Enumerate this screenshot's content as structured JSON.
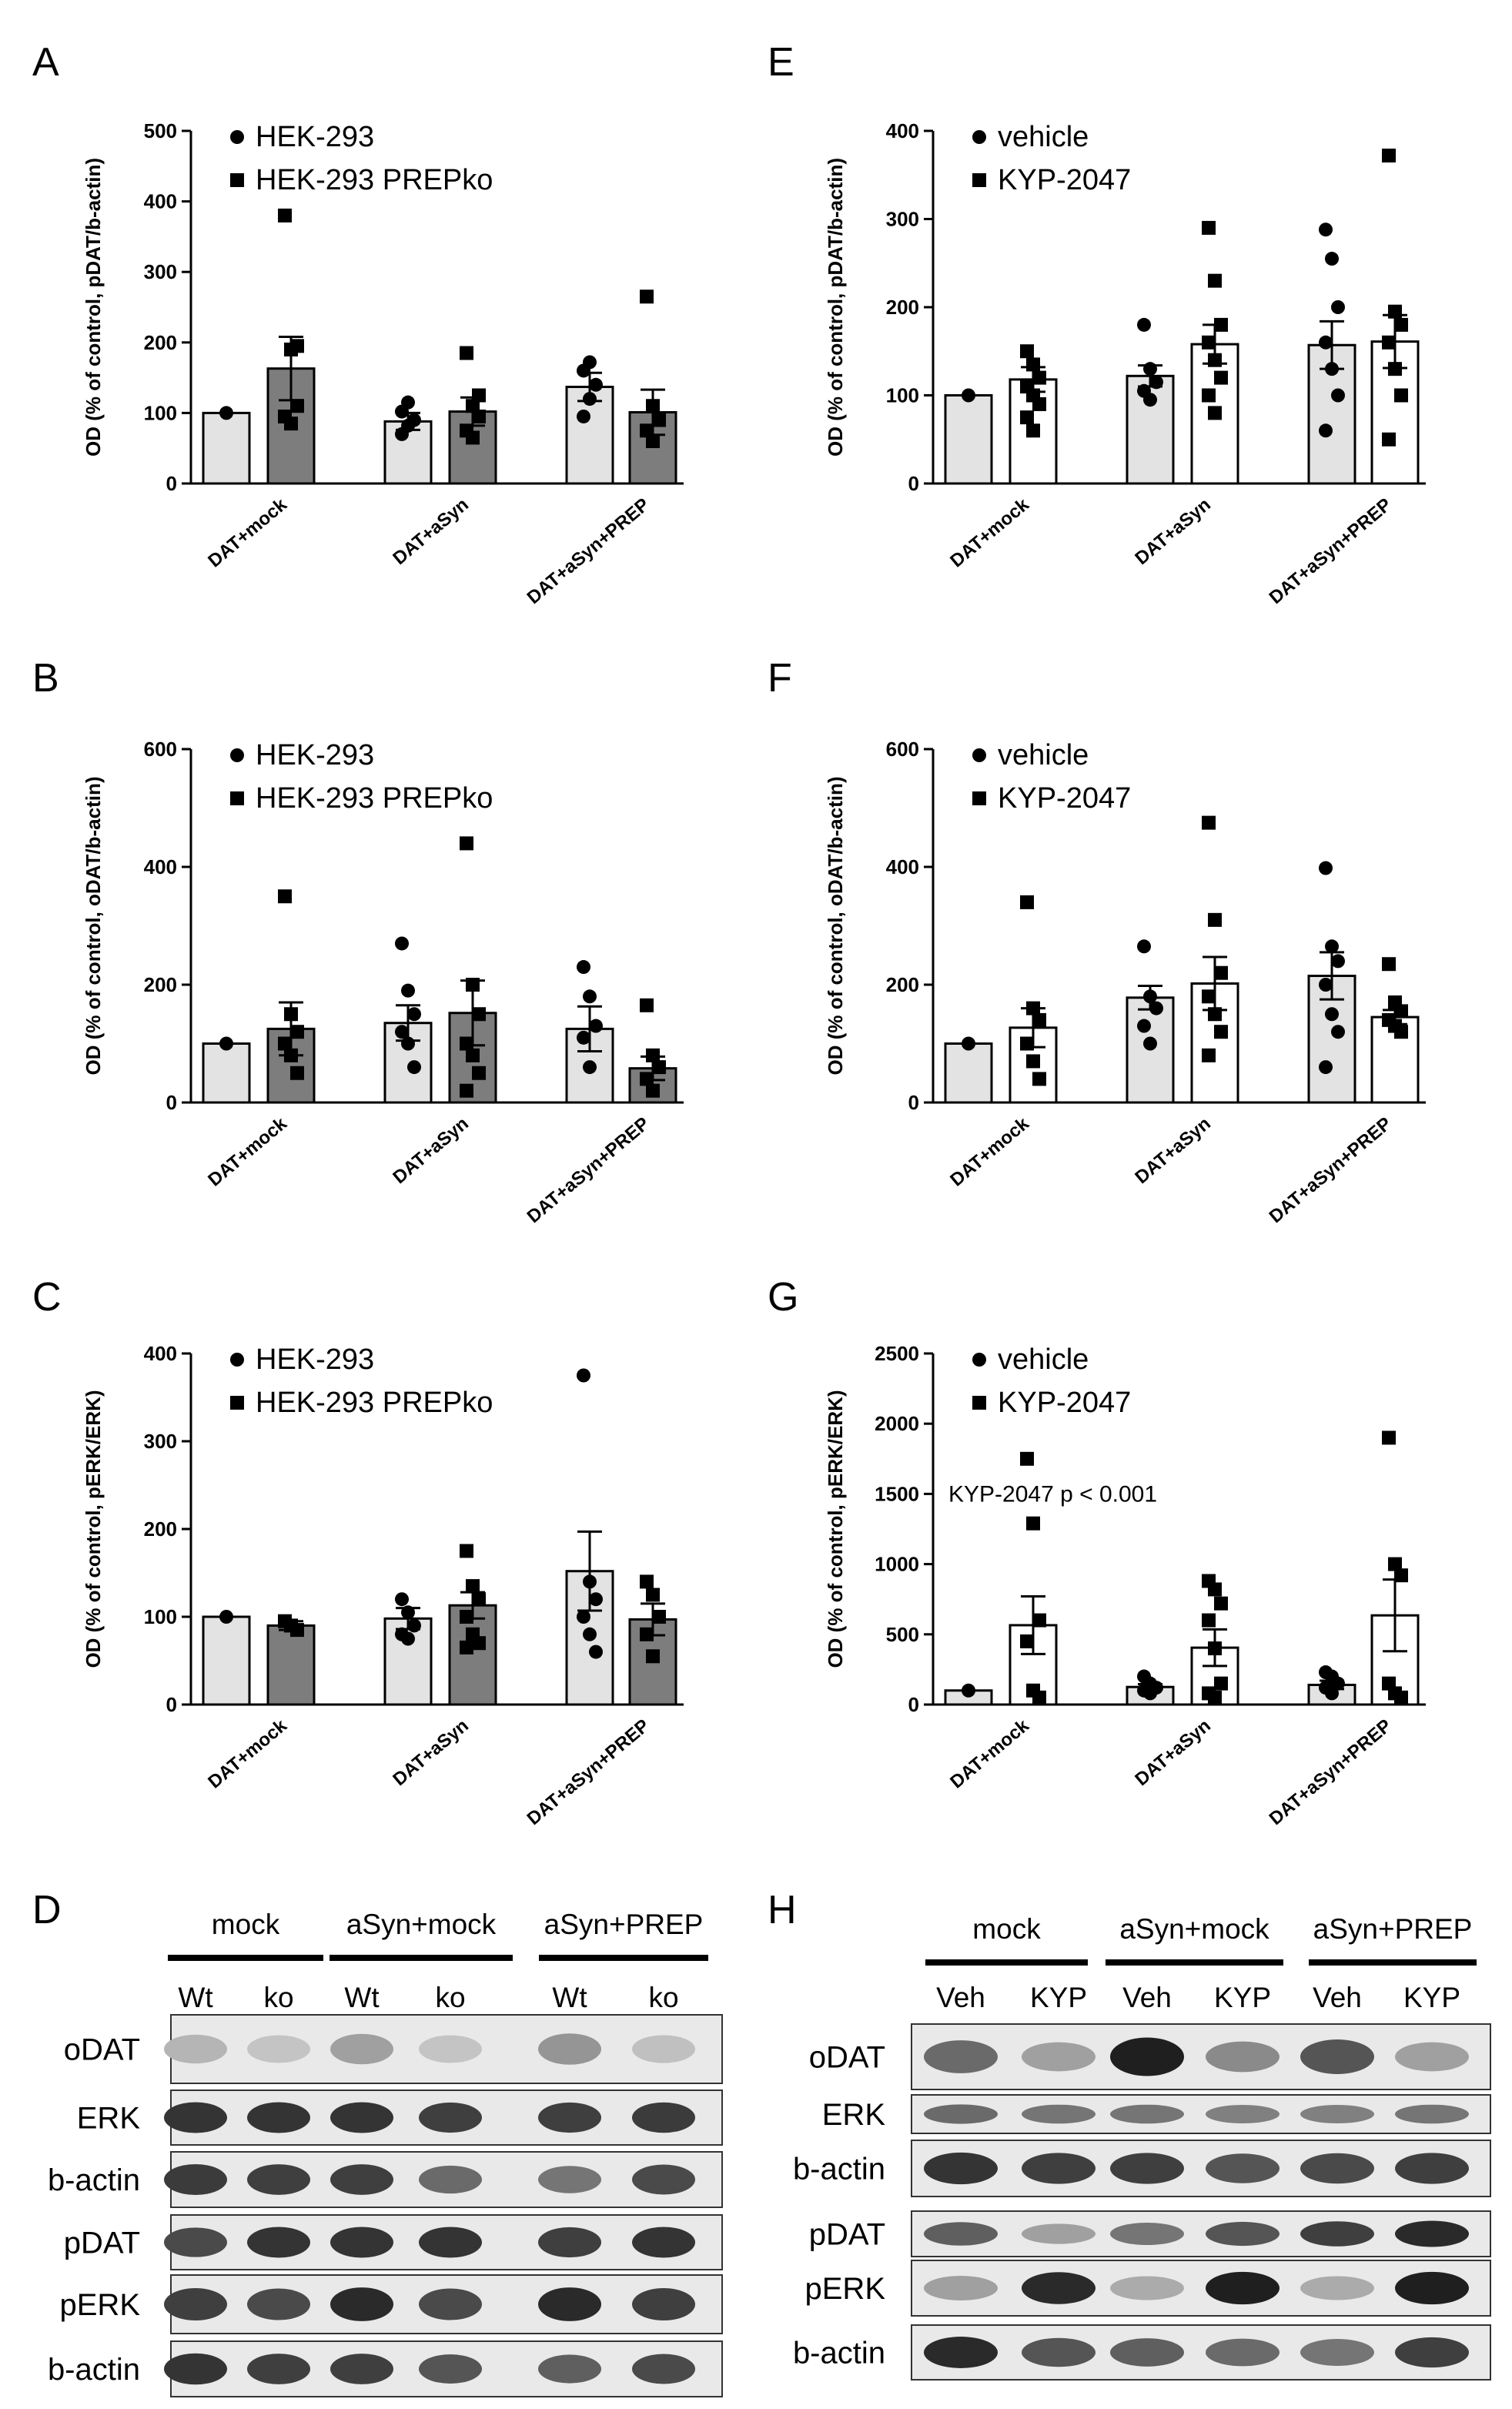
{
  "colors": {
    "gray_light": "#e3e3e3",
    "gray_dark": "#7d7d7d",
    "white": "#ffffff",
    "black": "#000000"
  },
  "chart_data": [
    {
      "panel": "A",
      "type": "bar",
      "title": "",
      "ylabel": "OD (% of control, pDAT/b-actin)",
      "yticks": [
        0,
        100,
        200,
        300,
        400,
        500
      ],
      "ylim": [
        0,
        500
      ],
      "categories": [
        "DAT+mock",
        "DAT+aSyn",
        "DAT+aSyn+PREP"
      ],
      "legend": [
        "HEK-293",
        "HEK-293 PREPko"
      ],
      "series": [
        {
          "name": "HEK-293",
          "fill": "light",
          "marker": "circle",
          "values": [
            100,
            88,
            137
          ],
          "sem": [
            0,
            12,
            20
          ],
          "points": [
            [
              100
            ],
            [
              70,
              82,
              90,
              102,
              115
            ],
            [
              95,
              120,
              140,
              160,
              172
            ]
          ]
        },
        {
          "name": "HEK-293 PREPko",
          "fill": "dark",
          "marker": "square",
          "values": [
            163,
            102,
            101
          ],
          "sem": [
            45,
            20,
            32
          ],
          "points": [
            [
              380,
              190,
              110,
              95,
              85,
              195
            ],
            [
              185,
              110,
              95,
              75,
              65,
              125
            ],
            [
              265,
              110,
              90,
              75,
              60
            ]
          ]
        }
      ],
      "annotation": ""
    },
    {
      "panel": "B",
      "type": "bar",
      "title": "",
      "ylabel": "OD (% of control, oDAT/b-actin)",
      "yticks": [
        0,
        200,
        400,
        600
      ],
      "ylim": [
        0,
        600
      ],
      "categories": [
        "DAT+mock",
        "DAT+aSyn",
        "DAT+aSyn+PREP"
      ],
      "legend": [
        "HEK-293",
        "HEK-293 PREPko"
      ],
      "series": [
        {
          "name": "HEK-293",
          "fill": "light",
          "marker": "circle",
          "values": [
            100,
            135,
            125
          ],
          "sem": [
            0,
            30,
            38
          ],
          "points": [
            [
              100
            ],
            [
              270,
              190,
              150,
              120,
              100,
              60
            ],
            [
              230,
              180,
              130,
              110,
              60
            ]
          ]
        },
        {
          "name": "HEK-293 PREPko",
          "fill": "dark",
          "marker": "square",
          "values": [
            125,
            152,
            58
          ],
          "sem": [
            45,
            55,
            20
          ],
          "points": [
            [
              350,
              150,
              120,
              100,
              80,
              50
            ],
            [
              440,
              200,
              150,
              100,
              80,
              50,
              20
            ],
            [
              165,
              80,
              60,
              40,
              20
            ]
          ]
        }
      ],
      "annotation": ""
    },
    {
      "panel": "C",
      "type": "bar",
      "title": "",
      "ylabel": "OD (% of control, pERK/ERK)",
      "yticks": [
        0,
        100,
        200,
        300,
        400
      ],
      "ylim": [
        0,
        400
      ],
      "categories": [
        "DAT+mock",
        "DAT+aSyn",
        "DAT+aSyn+PREP"
      ],
      "legend": [
        "HEK-293",
        "HEK-293 PREPko"
      ],
      "series": [
        {
          "name": "HEK-293",
          "fill": "light",
          "marker": "circle",
          "values": [
            100,
            98,
            152
          ],
          "sem": [
            0,
            12,
            45
          ],
          "points": [
            [
              100
            ],
            [
              120,
              105,
              90,
              80,
              75
            ],
            [
              375,
              140,
              120,
              100,
              80,
              60
            ]
          ]
        },
        {
          "name": "HEK-293 PREPko",
          "fill": "dark",
          "marker": "square",
          "values": [
            90,
            113,
            97
          ],
          "sem": [
            5,
            15,
            18
          ],
          "points": [
            [
              95,
              90,
              85
            ],
            [
              175,
              135,
              120,
              100,
              80,
              70,
              65
            ],
            [
              140,
              125,
              100,
              80,
              55
            ]
          ]
        }
      ],
      "annotation": ""
    },
    {
      "panel": "E",
      "type": "bar",
      "title": "",
      "ylabel": "OD (% of control, pDAT/b-actin)",
      "yticks": [
        0,
        100,
        200,
        300,
        400
      ],
      "ylim": [
        0,
        400
      ],
      "categories": [
        "DAT+mock",
        "DAT+aSyn",
        "DAT+aSyn+PREP"
      ],
      "legend": [
        "vehicle",
        "KYP-2047"
      ],
      "series": [
        {
          "name": "vehicle",
          "fill": "light",
          "marker": "circle",
          "values": [
            100,
            122,
            157
          ],
          "sem": [
            0,
            12,
            27
          ],
          "points": [
            [
              100
            ],
            [
              180,
              130,
              115,
              105,
              95
            ],
            [
              288,
              255,
              200,
              160,
              130,
              100,
              60
            ]
          ]
        },
        {
          "name": "KYP-2047",
          "fill": "white",
          "marker": "square",
          "values": [
            118,
            158,
            161
          ],
          "sem": [
            14,
            22,
            30
          ],
          "points": [
            [
              150,
              135,
              120,
              110,
              100,
              90,
              75,
              60
            ],
            [
              290,
              230,
              180,
              160,
              140,
              120,
              100,
              80
            ],
            [
              372,
              195,
              180,
              160,
              130,
              100,
              50
            ]
          ]
        }
      ],
      "annotation": ""
    },
    {
      "panel": "F",
      "type": "bar",
      "title": "",
      "ylabel": "OD (% of control, oDAT/b-actin)",
      "yticks": [
        0,
        200,
        400,
        600
      ],
      "ylim": [
        0,
        600
      ],
      "categories": [
        "DAT+mock",
        "DAT+aSyn",
        "DAT+aSyn+PREP"
      ],
      "legend": [
        "vehicle",
        "KYP-2047"
      ],
      "series": [
        {
          "name": "vehicle",
          "fill": "light",
          "marker": "circle",
          "values": [
            100,
            178,
            215
          ],
          "sem": [
            0,
            20,
            40
          ],
          "points": [
            [
              100
            ],
            [
              265,
              180,
              160,
              130,
              100
            ],
            [
              398,
              265,
              240,
              200,
              150,
              120,
              60
            ]
          ]
        },
        {
          "name": "KYP-2047",
          "fill": "white",
          "marker": "square",
          "values": [
            127,
            202,
            145
          ],
          "sem": [
            33,
            45,
            12
          ],
          "points": [
            [
              340,
              160,
              140,
              100,
              70,
              40
            ],
            [
              475,
              310,
              220,
              180,
              150,
              120,
              80
            ],
            [
              235,
              170,
              155,
              140,
              130,
              120
            ]
          ]
        }
      ],
      "annotation": ""
    },
    {
      "panel": "G",
      "type": "bar",
      "title": "",
      "ylabel": "OD (% of control, pERK/ERK)",
      "yticks": [
        0,
        500,
        1000,
        1500,
        2000,
        2500
      ],
      "ylim": [
        0,
        2500
      ],
      "categories": [
        "DAT+mock",
        "DAT+aSyn",
        "DAT+aSyn+PREP"
      ],
      "legend": [
        "vehicle",
        "KYP-2047"
      ],
      "series": [
        {
          "name": "vehicle",
          "fill": "light",
          "marker": "circle",
          "values": [
            100,
            125,
            140
          ],
          "sem": [
            0,
            20,
            30
          ],
          "points": [
            [
              100
            ],
            [
              200,
              150,
              120,
              100,
              80
            ],
            [
              230,
              200,
              150,
              120,
              80
            ]
          ]
        },
        {
          "name": "KYP-2047",
          "fill": "white",
          "marker": "square",
          "values": [
            565,
            405,
            635
          ],
          "sem": [
            205,
            130,
            255
          ],
          "points": [
            [
              1750,
              1290,
              600,
              450,
              100,
              50
            ],
            [
              880,
              820,
              720,
              600,
              400,
              150,
              80,
              50
            ],
            [
              1900,
              1000,
              920,
              150,
              80,
              50
            ]
          ]
        }
      ],
      "annotation": "KYP-2047 p < 0.001"
    }
  ],
  "figure": {
    "panel_labels": [
      "A",
      "B",
      "C",
      "D",
      "E",
      "F",
      "G",
      "H"
    ]
  },
  "blots": {
    "D": {
      "label": "D",
      "groups": [
        "mock",
        "aSyn+mock",
        "aSyn+PREP"
      ],
      "lanes": [
        "Wt",
        "ko",
        "Wt",
        "ko",
        "Wt",
        "ko"
      ],
      "rows": [
        "oDAT",
        "ERK",
        "b-actin",
        "pDAT",
        "pERK",
        "b-actin"
      ]
    },
    "H": {
      "label": "H",
      "groups": [
        "mock",
        "aSyn+mock",
        "aSyn+PREP"
      ],
      "lanes": [
        "Veh",
        "KYP",
        "Veh",
        "KYP",
        "Veh",
        "KYP"
      ],
      "rows": [
        "oDAT",
        "ERK",
        "b-actin",
        "pDAT",
        "pERK",
        "b-actin"
      ]
    }
  }
}
